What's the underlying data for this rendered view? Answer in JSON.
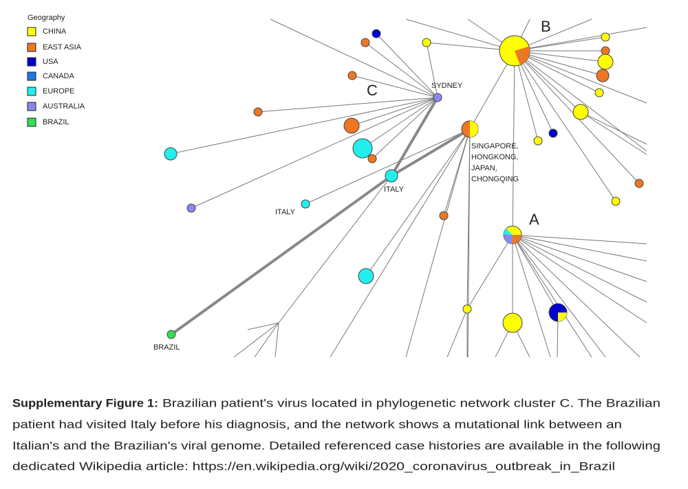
{
  "legend": {
    "title": "Geography",
    "items": [
      {
        "name": "CHINA",
        "color": "#ffff00"
      },
      {
        "name": "EAST ASIA",
        "color": "#ee7722"
      },
      {
        "name": "USA",
        "color": "#0000cc"
      },
      {
        "name": "CANADA",
        "color": "#1e78e0"
      },
      {
        "name": "EUROPE",
        "color": "#22eeee"
      },
      {
        "name": "AUSTRALIA",
        "color": "#8888ee"
      },
      {
        "name": "BRAZIL",
        "color": "#33dd55"
      }
    ]
  },
  "network": {
    "labels": [
      "B",
      "C",
      "A",
      "SYDNEY",
      "SINGAPORE,",
      "HONGKONG,",
      "JAPAN,",
      "CHONGQING",
      "ITALY",
      "ITALY",
      "BRAZIL"
    ]
  },
  "caption": {
    "label": "Supplementary Figure 1:",
    "lines": [
      "Brazilian patient's virus located in phylogenetic network cluster C. The Brazilian",
      "patient had visited Italy before his diagnosis, and the network shows a mutational link between an",
      "Italian's and the Brazilian's viral genome. Detailed referenced case histories are available in the following",
      "dedicated Wikipedia article:  https://en.wikipedia.org/wiki/2020_coronavirus_outbreak_in_Brazil"
    ]
  }
}
